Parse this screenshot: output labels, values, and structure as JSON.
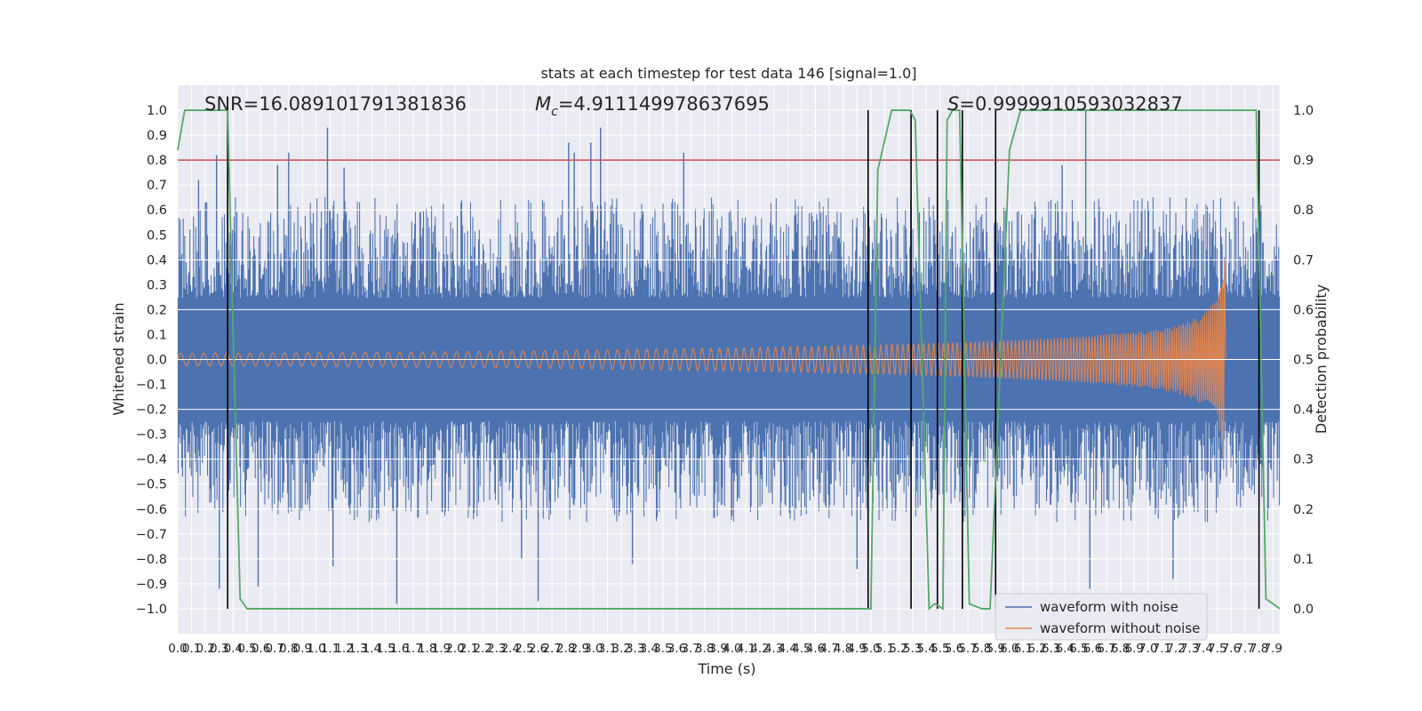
{
  "chart_data": {
    "type": "line",
    "title": "stats at each timestep for test data 146 [signal=1.0]",
    "xlabel": "Time (s)",
    "ylabel": "Whitened strain",
    "y2label": "Detection probability",
    "xlim": [
      0.0,
      7.95
    ],
    "ylim": [
      -1.1,
      1.1
    ],
    "y2lim": [
      -0.05,
      1.05
    ],
    "grid": true,
    "legend_position": "lower-right",
    "x_ticks": [
      "0.0",
      "0.1",
      "0.2",
      "0.3",
      "0.4",
      "0.5",
      "0.6",
      "0.7",
      "0.8",
      "0.9",
      "1.0",
      "1.1",
      "1.2",
      "1.3",
      "1.4",
      "1.5",
      "1.6",
      "1.7",
      "1.8",
      "1.9",
      "2.0",
      "2.1",
      "2.2",
      "2.3",
      "2.4",
      "2.5",
      "2.6",
      "2.7",
      "2.8",
      "2.9",
      "3.0",
      "3.1",
      "3.2",
      "3.3",
      "3.4",
      "3.5",
      "3.6",
      "3.7",
      "3.8",
      "3.9",
      "4.0",
      "4.1",
      "4.2",
      "4.3",
      "4.4",
      "4.5",
      "4.6",
      "4.7",
      "4.8",
      "4.9",
      "5.0",
      "5.1",
      "5.2",
      "5.3",
      "5.4",
      "5.5",
      "5.6",
      "5.7",
      "5.8",
      "5.9",
      "6.0",
      "6.1",
      "6.2",
      "6.3",
      "6.4",
      "6.5",
      "6.6",
      "6.7",
      "6.8",
      "6.9",
      "7.0",
      "7.1",
      "7.2",
      "7.3",
      "7.4",
      "7.5",
      "7.6",
      "7.7",
      "7.8",
      "7.9"
    ],
    "y_ticks": [
      "−1.0",
      "−0.9",
      "−0.8",
      "−0.7",
      "−0.6",
      "−0.5",
      "−0.4",
      "−0.3",
      "−0.2",
      "−0.1",
      "0.0",
      "0.1",
      "0.2",
      "0.3",
      "0.4",
      "0.5",
      "0.6",
      "0.7",
      "0.8",
      "0.9",
      "1.0"
    ],
    "y2_ticks": [
      "0.0",
      "0.1",
      "0.2",
      "0.3",
      "0.4",
      "0.5",
      "0.6",
      "0.7",
      "0.8",
      "0.9",
      "1.0"
    ],
    "annotations": {
      "snr": "SNR=16.089101791381836",
      "mc_symbol": "M",
      "mc_sub": "c",
      "mc_value": "=4.911149978637695",
      "s_symbol": "S",
      "s_value": "=0.9999910593032837"
    },
    "threshold": {
      "value": 0.9,
      "axis": "y2",
      "color": "#c44e52"
    },
    "noise_envelope": {
      "name": "waveform with noise",
      "color": "#4c72b0",
      "typical_amplitude": 0.45,
      "spikes": [
        {
          "x": 0.15,
          "y": 0.72
        },
        {
          "x": 0.2,
          "y": 0.63
        },
        {
          "x": 0.28,
          "y": 0.82
        },
        {
          "x": 0.36,
          "y": 0.78
        },
        {
          "x": 0.72,
          "y": 0.78
        },
        {
          "x": 0.8,
          "y": 0.83
        },
        {
          "x": 1.08,
          "y": 0.93
        },
        {
          "x": 1.2,
          "y": 0.77
        },
        {
          "x": 2.82,
          "y": 0.87
        },
        {
          "x": 2.86,
          "y": 0.83
        },
        {
          "x": 2.98,
          "y": 0.87
        },
        {
          "x": 3.05,
          "y": 0.93
        },
        {
          "x": 3.65,
          "y": 0.83
        },
        {
          "x": 4.98,
          "y": 0.8
        },
        {
          "x": 6.55,
          "y": 1.0
        },
        {
          "x": 6.38,
          "y": 0.78
        },
        {
          "x": 0.3,
          "y": -0.92
        },
        {
          "x": 0.58,
          "y": -0.91
        },
        {
          "x": 1.58,
          "y": -0.98
        },
        {
          "x": 2.6,
          "y": -0.97
        },
        {
          "x": 3.28,
          "y": -0.82
        },
        {
          "x": 4.9,
          "y": -0.84
        },
        {
          "x": 6.58,
          "y": -0.92
        },
        {
          "x": 7.18,
          "y": -0.88
        },
        {
          "x": 1.12,
          "y": -0.83
        },
        {
          "x": 2.48,
          "y": -0.8
        }
      ]
    },
    "signal_envelope": {
      "name": "waveform without noise",
      "color": "#dd8452",
      "x": [
        0.0,
        0.5,
        1.0,
        1.5,
        2.0,
        2.5,
        3.0,
        3.5,
        4.0,
        4.5,
        5.0,
        5.5,
        6.0,
        6.5,
        7.0,
        7.2,
        7.4,
        7.5,
        7.55,
        7.56
      ],
      "amplitude": [
        0.025,
        0.026,
        0.028,
        0.03,
        0.032,
        0.035,
        0.038,
        0.042,
        0.046,
        0.052,
        0.058,
        0.066,
        0.077,
        0.092,
        0.115,
        0.135,
        0.18,
        0.24,
        0.42,
        0.0
      ]
    },
    "detection_probability": {
      "name": "detection probability",
      "axis": "y2",
      "color": "#55a868",
      "x": [
        0.0,
        0.05,
        0.12,
        0.36,
        0.4,
        0.45,
        0.5,
        0.6,
        0.8,
        1.0,
        4.97,
        5.0,
        5.05,
        5.15,
        5.28,
        5.32,
        5.42,
        5.46,
        5.52,
        5.55,
        5.59,
        5.64,
        5.71,
        5.8,
        5.86,
        6.0,
        6.08,
        7.78,
        7.85,
        7.95
      ],
      "y": [
        0.92,
        1.0,
        1.0,
        1.0,
        0.55,
        0.02,
        0.0,
        0.0,
        0.0,
        0.0,
        0.0,
        0.0,
        0.88,
        1.0,
        1.0,
        0.98,
        0.0,
        0.01,
        0.0,
        0.98,
        1.0,
        1.0,
        0.01,
        0.0,
        0.0,
        0.92,
        1.0,
        1.0,
        0.02,
        0.0
      ]
    },
    "detection_markers": {
      "color": "#000000",
      "x": [
        0.36,
        4.98,
        5.29,
        5.48,
        5.66,
        5.9,
        7.8
      ]
    }
  }
}
